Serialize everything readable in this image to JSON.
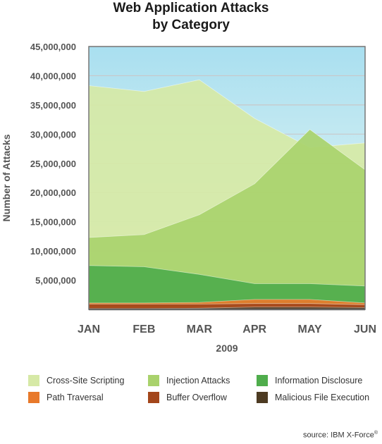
{
  "title_line1": "Web Application Attacks",
  "title_line2": "by Category",
  "source": "source: IBM X-Force",
  "source_mark": "®",
  "colors": {
    "background_top": "#a9dff0",
    "background_bottom": "#f3fbf4",
    "plot_border": "#777777",
    "grid": "#c8c8c8",
    "baseline": "#666666"
  },
  "chart_data": {
    "type": "area",
    "title": "Web Application Attacks by Category",
    "xlabel": "2009",
    "ylabel": "Number of Attacks",
    "categories": [
      "JAN",
      "FEB",
      "MAR",
      "APR",
      "MAY",
      "JUN"
    ],
    "ylim": [
      0,
      45000000
    ],
    "yticks": [
      5000000,
      10000000,
      15000000,
      20000000,
      25000000,
      30000000,
      35000000,
      40000000,
      45000000
    ],
    "ytick_labels": [
      "5,000,000",
      "10,000,000",
      "15,000,000",
      "20,000,000",
      "25,000,000",
      "30,000,000",
      "35,000,000",
      "40,000,000",
      "45,000,000"
    ],
    "grid": true,
    "legend_position": "bottom",
    "series": [
      {
        "name": "Cross-Site Scripting",
        "color": "#d6e9a6",
        "values": [
          38300000,
          37300000,
          39300000,
          32700000,
          27700000,
          28500000
        ]
      },
      {
        "name": "Injection Attacks",
        "color": "#a9d26c",
        "values": [
          12300000,
          12800000,
          16200000,
          21500000,
          30800000,
          23900000
        ]
      },
      {
        "name": "Information Disclosure",
        "color": "#4fad4c",
        "values": [
          7500000,
          7300000,
          6000000,
          4400000,
          4400000,
          4000000
        ]
      },
      {
        "name": "Path Traversal",
        "color": "#e8792a",
        "values": [
          1100000,
          1100000,
          1200000,
          1700000,
          1700000,
          1100000
        ]
      },
      {
        "name": "Buffer Overflow",
        "color": "#a3461b",
        "values": [
          900000,
          900000,
          900000,
          1000000,
          1000000,
          800000
        ]
      },
      {
        "name": "Malicious File Execution",
        "color": "#4d3b22",
        "values": [
          150000,
          150000,
          200000,
          400000,
          400000,
          300000
        ]
      }
    ]
  }
}
